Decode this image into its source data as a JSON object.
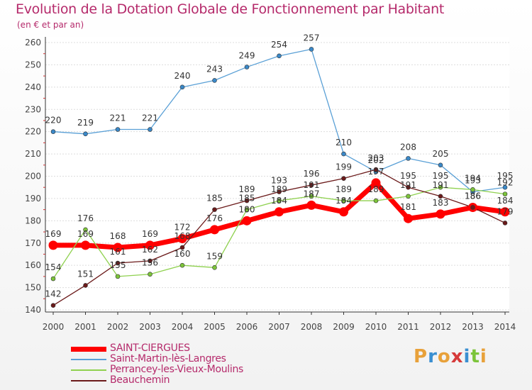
{
  "header": {
    "title": "Evolution de la Dotation Globale de Fonctionnement par Habitant",
    "subtitle": "(en € et par an)"
  },
  "logo": {
    "text": "Proxiti"
  },
  "colors": {
    "title": "#b52a6b",
    "axis": "#444444",
    "grid": "#dddddd",
    "saint_ciergues": "#ff0000",
    "saint_martin": "#5aa0d6",
    "perrancey": "#8fd14f",
    "beauchemin": "#6b1a1a"
  },
  "chart_data": {
    "type": "line",
    "title": "Evolution de la Dotation Globale de Fonctionnement par Habitant",
    "subtitle": "(en € et par an)",
    "x": [
      "2000",
      "2001",
      "2002",
      "2003",
      "2004",
      "2005",
      "2006",
      "2007",
      "2008",
      "2009",
      "2010",
      "2011",
      "2012",
      "2013",
      "2014"
    ],
    "ylim": [
      140,
      260
    ],
    "yticks": [
      140,
      150,
      160,
      170,
      180,
      190,
      200,
      210,
      220,
      230,
      240,
      250,
      260
    ],
    "grid": "horizontal",
    "legend_position": "bottom",
    "series": [
      {
        "name": "SAINT-CIERGUES",
        "color": "#ff0000",
        "marker": "#ff0000",
        "width": 7,
        "values": [
          169,
          169,
          168,
          169,
          172,
          176,
          180,
          184,
          187,
          184,
          197,
          181,
          183,
          186,
          184
        ]
      },
      {
        "name": "Saint-Martin-lès-Langres",
        "color": "#5aa0d6",
        "marker": "#3a88c8",
        "width": 1.3,
        "values": [
          220,
          219,
          221,
          221,
          240,
          243,
          249,
          254,
          257,
          210,
          202,
          208,
          205,
          193,
          195
        ]
      },
      {
        "name": "Perrancey-les-Vieux-Moulins",
        "color": "#8fd14f",
        "marker": "#7cc43a",
        "width": 1.3,
        "values": [
          154,
          176,
          155,
          156,
          160,
          159,
          185,
          189,
          191,
          189,
          189,
          191,
          195,
          194,
          192
        ]
      },
      {
        "name": "Beauchemin",
        "color": "#6b1a1a",
        "marker": "#6b1a1a",
        "width": 1.3,
        "values": [
          142,
          151,
          161,
          162,
          168,
          185,
          189,
          193,
          196,
          199,
          203,
          195,
          191,
          186,
          179
        ]
      }
    ]
  }
}
